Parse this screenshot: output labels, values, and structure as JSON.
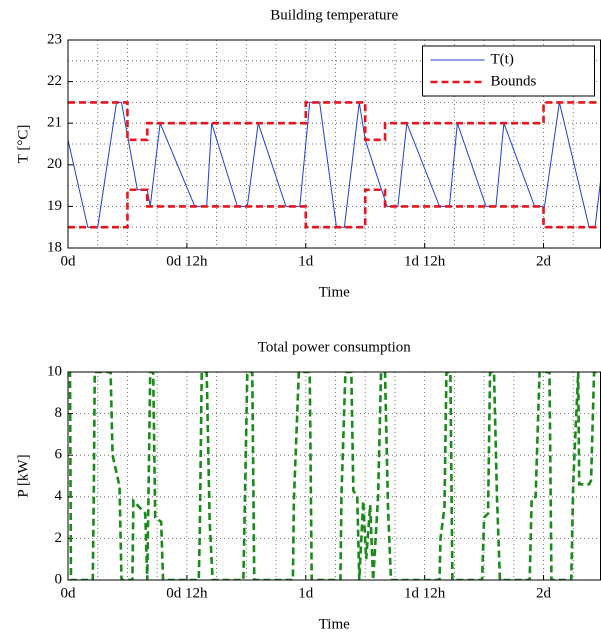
{
  "chart_data": [
    {
      "type": "line",
      "title": "Building temperature",
      "xlabel": "Time",
      "ylabel": "T [°C]",
      "xlim": [
        0,
        53.75
      ],
      "ylim": [
        18,
        23
      ],
      "xticks": [
        {
          "value": 0,
          "label": "0d"
        },
        {
          "value": 12,
          "label": "0d 12h"
        },
        {
          "value": 24,
          "label": "1d"
        },
        {
          "value": 36,
          "label": "1d 12h"
        },
        {
          "value": 48,
          "label": "2d"
        }
      ],
      "yticks": [
        18,
        19,
        20,
        21,
        22,
        23
      ],
      "grid": true,
      "xgrid": [
        3,
        6,
        9,
        15,
        18,
        21,
        27,
        30,
        33,
        39,
        42,
        45,
        51
      ],
      "ygrid": [
        18.5,
        19.5,
        20.5,
        21.5,
        22.5
      ],
      "legend": "upper right",
      "series": [
        {
          "name": "T(t)",
          "color": "#1f3fd6",
          "style": "solid",
          "x": [
            0,
            2,
            3,
            4.9,
            5.4,
            7,
            8,
            8.3,
            9.3,
            12.8,
            14,
            14.5,
            17.1,
            18.1,
            19.2,
            22,
            23.4,
            24.4,
            25.4,
            27.1,
            27.9,
            29.4,
            30,
            32.2,
            33.3,
            34.2,
            37.5,
            38.5,
            39.3,
            42.2,
            43.2,
            44,
            47.1,
            48.1,
            49.6,
            52.6,
            53.2,
            53.75
          ],
          "values": [
            20.6,
            18.5,
            18.5,
            21.5,
            21.5,
            19.4,
            19.4,
            19,
            21,
            19,
            19,
            21,
            19,
            19,
            21,
            19,
            19,
            21.5,
            21.5,
            18.5,
            18.5,
            21.5,
            20.6,
            19,
            19,
            21,
            19,
            19,
            21,
            19,
            19,
            21,
            19,
            19,
            21.5,
            18.5,
            18.5,
            19.6
          ]
        },
        {
          "name": "Bounds",
          "color": "#e8141e",
          "style": "dashed",
          "x": [
            0,
            6,
            6,
            8,
            8,
            24,
            24,
            30,
            30,
            32,
            32,
            48,
            48,
            53.75
          ],
          "lower": [
            18.5,
            18.5,
            19.4,
            19.4,
            19,
            19,
            18.5,
            18.5,
            19.4,
            19.4,
            19,
            19,
            18.5,
            18.5
          ],
          "upper": [
            21.5,
            21.5,
            20.6,
            20.6,
            21,
            21,
            21.5,
            21.5,
            20.6,
            20.6,
            21,
            21,
            21.5,
            21.5
          ]
        }
      ]
    },
    {
      "type": "line",
      "title": "Total power consumption",
      "xlabel": "Time",
      "ylabel": "P [kW]",
      "xlim": [
        0,
        53.75
      ],
      "ylim": [
        0,
        10
      ],
      "xticks": [
        {
          "value": 0,
          "label": "0d"
        },
        {
          "value": 12,
          "label": "0d 12h"
        },
        {
          "value": 24,
          "label": "1d"
        },
        {
          "value": 36,
          "label": "1d 12h"
        },
        {
          "value": 48,
          "label": "2d"
        }
      ],
      "yticks": [
        0,
        2,
        4,
        6,
        8,
        10
      ],
      "grid": true,
      "xgrid": [
        3,
        6,
        9,
        15,
        18,
        21,
        27,
        30,
        33,
        39,
        42,
        45,
        51
      ],
      "ygrid": [],
      "series": [
        {
          "color": "#1a8a1a",
          "style": "dashed",
          "x": [
            0,
            0.2,
            0.3,
            2.5,
            2.6,
            2.7,
            4.3,
            4.5,
            5.2,
            5.4,
            6.5,
            6.6,
            7.2,
            7.8,
            8,
            8.3,
            8.6,
            8.8,
            9.4,
            9.6,
            13.2,
            13.3,
            13.5,
            14,
            14.3,
            14.6,
            17.7,
            17.8,
            18.1,
            18.6,
            18.8,
            22.7,
            22.8,
            23.3,
            24.4,
            24.6,
            27.5,
            27.6,
            28,
            28.6,
            28.8,
            29.2,
            29.4,
            29.8,
            30.1,
            30.5,
            30.8,
            31.3,
            31.6,
            32,
            32.3,
            32.6,
            37.5,
            37.6,
            38,
            38.2,
            38.6,
            38.8,
            41.8,
            42,
            42.4,
            42.6,
            43,
            43.3,
            43.6,
            46.6,
            46.8,
            47.2,
            47.6,
            48.6,
            48.8,
            50.8,
            51,
            51.5,
            51.6,
            52.6,
            52.8,
            53.1,
            53.75
          ],
          "values": [
            10,
            10,
            0,
            0,
            4,
            10,
            10,
            6,
            4.5,
            0,
            0,
            3.8,
            3.5,
            3.2,
            0,
            10,
            10,
            3,
            2.8,
            0,
            0,
            2.2,
            10,
            10,
            2.8,
            0,
            0,
            2.4,
            10,
            10,
            0,
            0,
            3.8,
            10,
            10,
            0,
            0,
            4,
            10,
            10,
            4.3,
            4,
            0,
            3.8,
            1,
            3.6,
            0,
            4,
            10,
            10,
            3.5,
            0,
            0,
            2,
            3.5,
            10,
            10,
            0,
            0,
            3,
            3.2,
            10,
            10,
            4,
            0,
            0,
            3.9,
            4,
            10,
            10,
            0,
            0,
            4.7,
            10,
            4.6,
            4.6,
            4.8,
            10,
            10
          ]
        }
      ]
    }
  ]
}
